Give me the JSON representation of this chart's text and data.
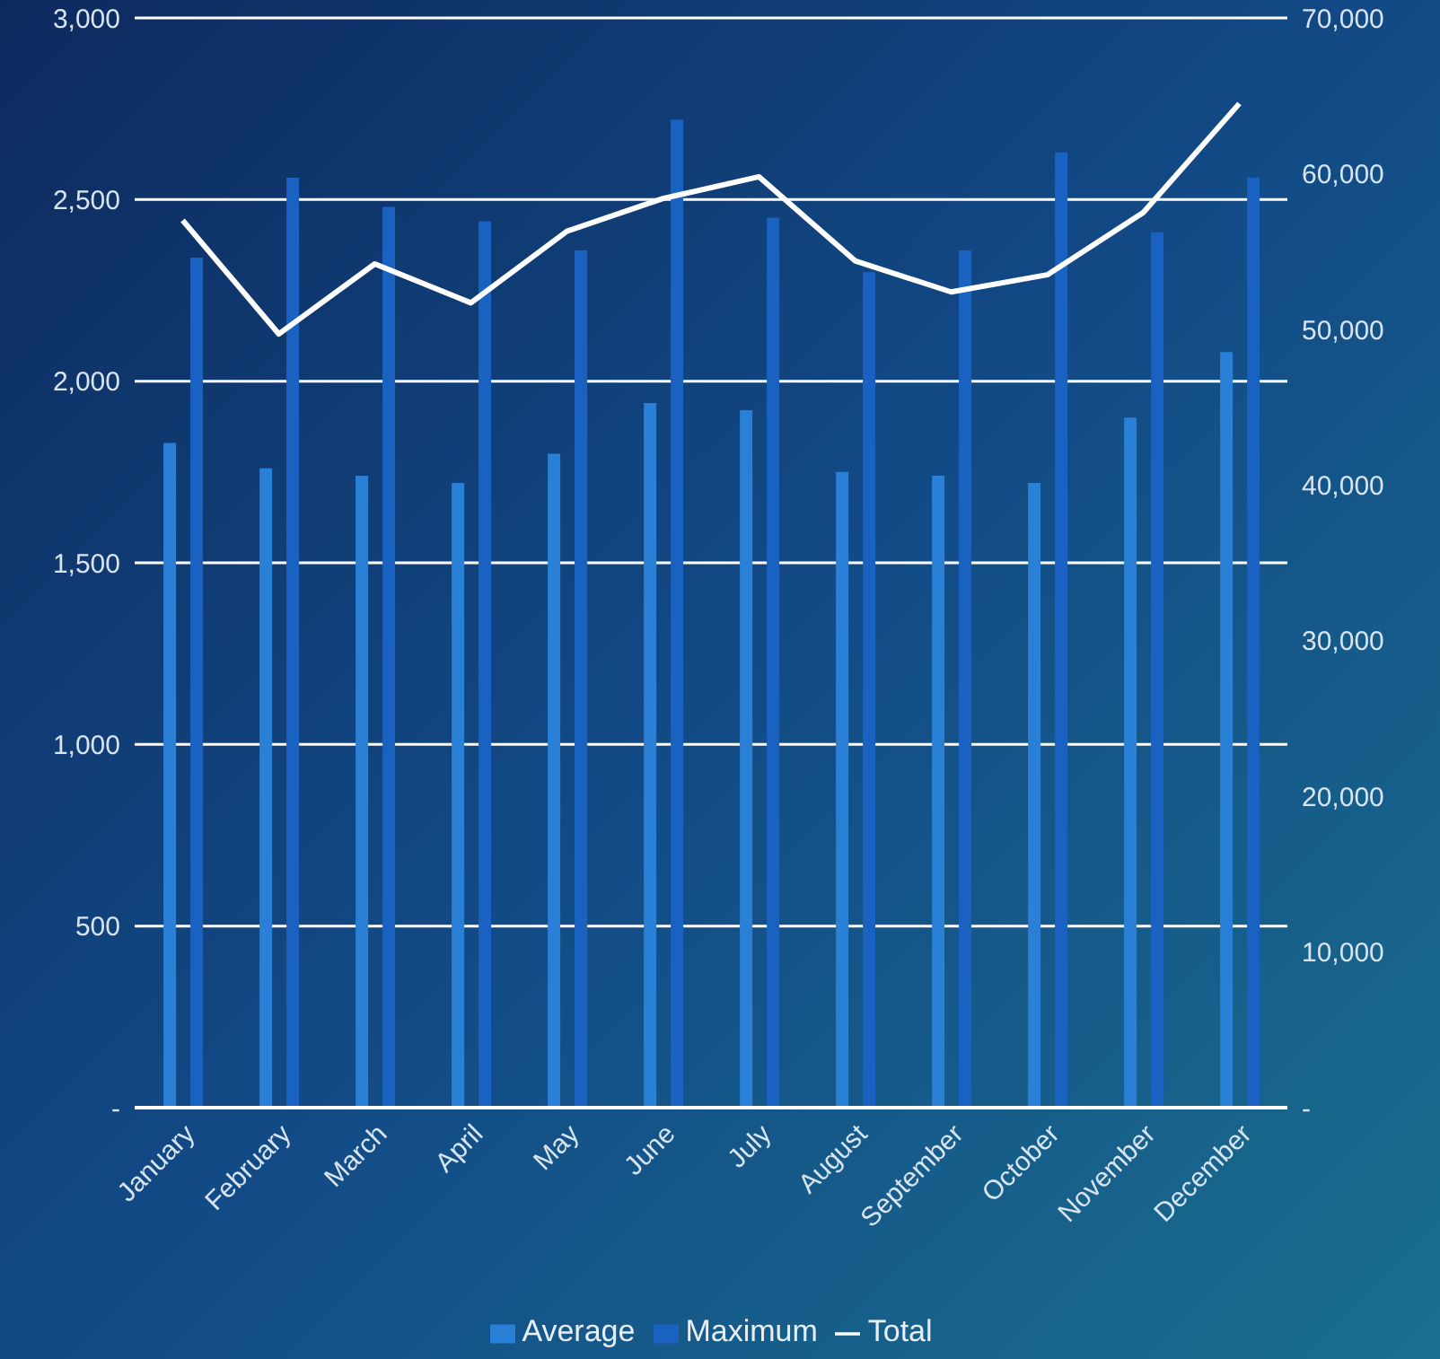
{
  "chart_data": {
    "type": "bar",
    "categories": [
      "January",
      "February",
      "March",
      "April",
      "May",
      "June",
      "July",
      "August",
      "September",
      "October",
      "November",
      "December"
    ],
    "series": [
      {
        "name": "Average",
        "color": "#2a80d6",
        "values": [
          1830,
          1760,
          1740,
          1720,
          1800,
          1940,
          1920,
          1750,
          1740,
          1720,
          1900,
          2080
        ]
      },
      {
        "name": "Maximum",
        "color": "#1a62c2",
        "values": [
          2340,
          2560,
          2480,
          2440,
          2360,
          2720,
          2450,
          2300,
          2360,
          2630,
          2410,
          2560
        ]
      },
      {
        "name": "Total",
        "type": "line",
        "axis": "y2",
        "color": "#ffffff",
        "values": [
          57000,
          49700,
          54200,
          51700,
          56300,
          58400,
          59800,
          54400,
          52400,
          53500,
          57500,
          64500
        ]
      }
    ],
    "ylim": [
      0,
      3000
    ],
    "yticks": [
      {
        "value": 0,
        "label": "-"
      },
      500,
      {
        "value": 1000,
        "label": "1,000"
      },
      {
        "value": 1500,
        "label": "1,500"
      },
      {
        "value": 2000,
        "label": "2,000"
      },
      {
        "value": 2500,
        "label": "2,500"
      },
      {
        "value": 3000,
        "label": "3,000"
      }
    ],
    "y2lim": [
      0,
      70000
    ],
    "y2ticks": [
      {
        "value": 0,
        "label": "-"
      },
      {
        "value": 10000,
        "label": "10,000"
      },
      {
        "value": 20000,
        "label": "20,000"
      },
      {
        "value": 30000,
        "label": "30,000"
      },
      {
        "value": 40000,
        "label": "40,000"
      },
      {
        "value": 50000,
        "label": "50,000"
      },
      {
        "value": 60000,
        "label": "60,000"
      },
      {
        "value": 70000,
        "label": "70,000"
      }
    ],
    "grid": "y",
    "legend": "bottom",
    "marker": "none",
    "line_style": "solid"
  }
}
